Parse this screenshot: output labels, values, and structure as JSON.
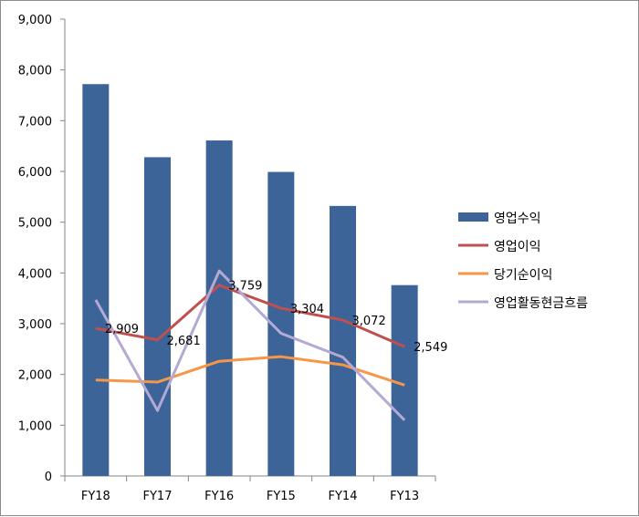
{
  "chart_data": {
    "type": "bar",
    "categories": [
      "FY18",
      "FY17",
      "FY16",
      "FY15",
      "FY14",
      "FY13"
    ],
    "ylim": [
      0,
      9000
    ],
    "yticks": [
      0,
      1000,
      2000,
      3000,
      4000,
      5000,
      6000,
      7000,
      8000,
      9000
    ],
    "ytick_labels": [
      "0",
      "1,000",
      "2,000",
      "3,000",
      "4,000",
      "5,000",
      "6,000",
      "7,000",
      "8,000",
      "9,000"
    ],
    "grid": false,
    "legend_position": "right",
    "series": [
      {
        "name": "영업수익",
        "type": "bar",
        "color": "#3c6499",
        "values": [
          7720,
          6280,
          6610,
          5990,
          5320,
          3760
        ]
      },
      {
        "name": "영업이익",
        "type": "line",
        "color": "#c0504d",
        "values": [
          2909,
          2681,
          3759,
          3304,
          3072,
          2549
        ],
        "data_labels": [
          "2,909",
          "2,681",
          "3,759",
          "3,304",
          "3,072",
          "2,549"
        ]
      },
      {
        "name": "당기순이익",
        "type": "line",
        "color": "#f79646",
        "values": [
          1890,
          1850,
          2260,
          2350,
          2190,
          1790
        ]
      },
      {
        "name": "영업활동현금흐름",
        "type": "line",
        "color": "#b3a9d3",
        "values": [
          3470,
          1290,
          4040,
          2810,
          2340,
          1100
        ]
      }
    ]
  }
}
